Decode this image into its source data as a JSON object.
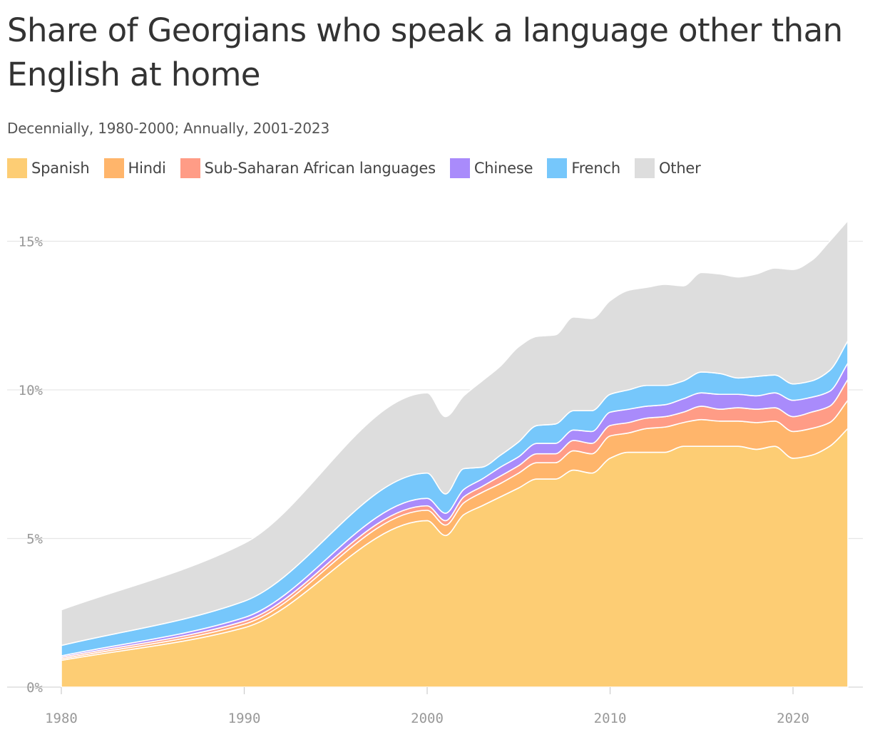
{
  "title": "Share of Georgians who speak a language other than English at home",
  "subtitle": "Decennially, 1980-2000; Annually, 2001-2023",
  "legend": [
    {
      "label": "Spanish",
      "color": "#fdcd74"
    },
    {
      "label": "Hindi",
      "color": "#ffb56b"
    },
    {
      "label": "Sub-Saharan African languages",
      "color": "#ff9c86"
    },
    {
      "label": "Chinese",
      "color": "#a98bfb"
    },
    {
      "label": "French",
      "color": "#76c7fb"
    },
    {
      "label": "Other",
      "color": "#dddddd"
    }
  ],
  "chart_data": {
    "type": "area",
    "stacked": true,
    "title": "Share of Georgians who speak a language other than English at home",
    "subtitle": "Decennially, 1980-2000; Annually, 2001-2023",
    "xlabel": "",
    "ylabel": "",
    "x": [
      1980,
      1990,
      2000,
      2001,
      2002,
      2003,
      2004,
      2005,
      2006,
      2007,
      2008,
      2009,
      2010,
      2011,
      2012,
      2013,
      2014,
      2015,
      2016,
      2017,
      2018,
      2019,
      2020,
      2021,
      2022,
      2023
    ],
    "xlim": [
      1980,
      2023
    ],
    "ylim": [
      0,
      15.6
    ],
    "x_ticks": [
      1980,
      1990,
      2000,
      2010,
      2020
    ],
    "x_tick_labels": [
      "1980",
      "1990",
      "2000",
      "2010",
      "2020"
    ],
    "y_ticks": [
      0,
      5,
      10,
      15
    ],
    "y_tick_labels": [
      "0%",
      "5%",
      "10%",
      "15%"
    ],
    "grid": "horizontal",
    "legend_position": "top-left",
    "series": [
      {
        "name": "Spanish",
        "color": "#fdcd74",
        "values": [
          0.9,
          2.0,
          5.6,
          5.1,
          5.8,
          6.1,
          6.4,
          6.7,
          7.0,
          7.0,
          7.3,
          7.2,
          7.7,
          7.9,
          7.9,
          7.9,
          8.1,
          8.1,
          8.1,
          8.1,
          8.0,
          8.1,
          7.7,
          7.8,
          8.1,
          8.7
        ]
      },
      {
        "name": "Hindi",
        "color": "#ffb56b",
        "values": [
          0.05,
          0.12,
          0.35,
          0.35,
          0.4,
          0.45,
          0.45,
          0.5,
          0.55,
          0.55,
          0.65,
          0.65,
          0.75,
          0.65,
          0.8,
          0.85,
          0.8,
          0.9,
          0.85,
          0.85,
          0.9,
          0.85,
          0.9,
          0.9,
          0.8,
          0.95
        ]
      },
      {
        "name": "Sub-Saharan African languages",
        "color": "#ff9c86",
        "values": [
          0.05,
          0.1,
          0.15,
          0.15,
          0.2,
          0.2,
          0.25,
          0.25,
          0.3,
          0.3,
          0.35,
          0.35,
          0.35,
          0.35,
          0.35,
          0.35,
          0.35,
          0.45,
          0.4,
          0.45,
          0.45,
          0.45,
          0.5,
          0.55,
          0.55,
          0.7
        ]
      },
      {
        "name": "Chinese",
        "color": "#a98bfb",
        "values": [
          0.05,
          0.12,
          0.25,
          0.25,
          0.25,
          0.25,
          0.3,
          0.3,
          0.35,
          0.35,
          0.35,
          0.4,
          0.45,
          0.45,
          0.4,
          0.4,
          0.45,
          0.45,
          0.5,
          0.45,
          0.45,
          0.5,
          0.55,
          0.5,
          0.5,
          0.55
        ]
      },
      {
        "name": "French",
        "color": "#76c7fb",
        "values": [
          0.35,
          0.55,
          0.85,
          0.65,
          0.7,
          0.4,
          0.4,
          0.5,
          0.6,
          0.65,
          0.65,
          0.7,
          0.6,
          0.65,
          0.7,
          0.65,
          0.6,
          0.7,
          0.7,
          0.55,
          0.65,
          0.6,
          0.55,
          0.55,
          0.7,
          0.75
        ]
      },
      {
        "name": "Other",
        "color": "#dddddd",
        "values": [
          1.2,
          1.95,
          2.7,
          2.6,
          2.45,
          2.9,
          3.0,
          3.2,
          3.0,
          3.0,
          3.15,
          3.1,
          3.15,
          3.35,
          3.3,
          3.4,
          3.2,
          3.35,
          3.35,
          3.4,
          3.45,
          3.6,
          3.85,
          4.05,
          4.35,
          4.05
        ]
      }
    ]
  }
}
